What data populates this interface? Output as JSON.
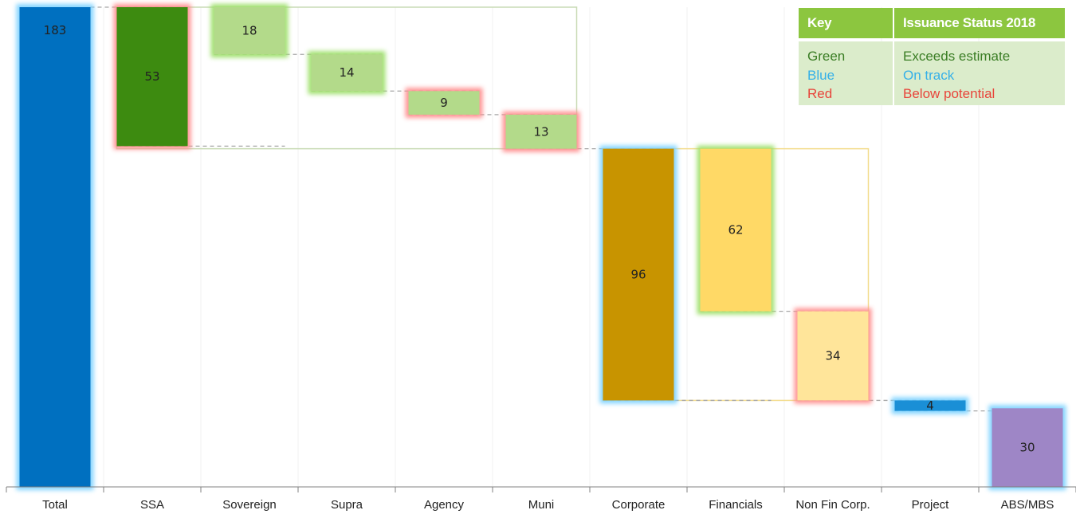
{
  "chart_data": {
    "type": "waterfall",
    "categories": [
      "Total",
      "SSA",
      "Sovereign",
      "Supra",
      "Agency",
      "Muni",
      "Corporate",
      "Financials",
      "Non Fin Corp.",
      "Project",
      "ABS/MBS"
    ],
    "values": [
      183,
      53,
      18,
      14,
      9,
      13,
      96,
      62,
      34,
      4,
      30
    ],
    "bars": [
      {
        "category": "Total",
        "value": 183,
        "base": 0,
        "color": "#0070c0",
        "status": "Blue"
      },
      {
        "category": "SSA",
        "value": 53,
        "base": 130,
        "color": "#3d8b10",
        "status": "Red"
      },
      {
        "category": "Sovereign",
        "value": 18,
        "base": 165,
        "color": "#b3da8a",
        "status": "Green"
      },
      {
        "category": "Supra",
        "value": 14,
        "base": 151,
        "color": "#b3da8a",
        "status": "Green"
      },
      {
        "category": "Agency",
        "value": 9,
        "base": 142,
        "color": "#b3da8a",
        "status": "Red"
      },
      {
        "category": "Muni",
        "value": 13,
        "base": 129,
        "color": "#b3da8a",
        "status": "Red"
      },
      {
        "category": "Corporate",
        "value": 96,
        "base": 33,
        "color": "#c89400",
        "status": "Blue"
      },
      {
        "category": "Financials",
        "value": 62,
        "base": 67,
        "color": "#ffd966",
        "status": "Green"
      },
      {
        "category": "Non Fin Corp.",
        "value": 34,
        "base": 33,
        "color": "#ffe59a",
        "status": "Red"
      },
      {
        "category": "Project",
        "value": 4,
        "base": 29,
        "color": "#1a8fd6",
        "status": "Blue"
      },
      {
        "category": "ABS/MBS",
        "value": 30,
        "base": 0,
        "color": "#9e86c6",
        "status": "Blue"
      }
    ],
    "groups": [
      {
        "name": "SSA",
        "from": "SSA",
        "to": "Muni",
        "top": 183,
        "bottom": 129,
        "color": "#c9dbb5"
      },
      {
        "name": "Corporate",
        "from": "Corporate",
        "to": "Non Fin Corp.",
        "top": 129,
        "bottom": 33,
        "color": "#f3dc8c"
      }
    ],
    "glow_colors": {
      "Green": "#9fe06c",
      "Blue": "#7fd3ff",
      "Red": "#ff8f8f"
    },
    "ylim": [
      0,
      185
    ],
    "grid": false
  },
  "key": {
    "header_left": "Key",
    "header_right": "Issuance Status 2018",
    "rows": [
      {
        "label": "Green",
        "label_color": "#3a7d24",
        "meaning": "Exceeds estimate",
        "meaning_color": "#3a7d24"
      },
      {
        "label": "Blue",
        "label_color": "#35b0e8",
        "meaning": "On track",
        "meaning_color": "#35b0e8"
      },
      {
        "label": "Red",
        "label_color": "#e8443a",
        "meaning": "Below potential",
        "meaning_color": "#e8443a"
      }
    ]
  }
}
